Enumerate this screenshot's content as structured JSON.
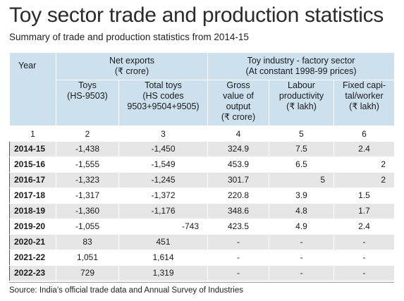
{
  "title": "Toy sector trade and production statistics",
  "subtitle": "Summary of trade and production statistics from 2014-15",
  "table": {
    "year_header": "Year",
    "group_net_exports": [
      "Net exports",
      "(₹ crore)"
    ],
    "group_toy_industry": [
      "Toy industry - factory sector",
      "(At constant 1998-99 prices)"
    ],
    "col_toys": [
      "Toys",
      "(HS-9503)"
    ],
    "col_total_toys": [
      "Total toys",
      "(HS codes",
      "9503+9504+9505)"
    ],
    "col_gross": [
      "Gross",
      "value of",
      "output",
      "(₹ crore)"
    ],
    "col_labour": [
      "Labour",
      "productivity",
      "(₹ lakh)"
    ],
    "col_capital": [
      "Fixed capi-",
      "tal/worker",
      "(₹ lakh)"
    ],
    "column_numbers": [
      "1",
      "2",
      "3",
      "4",
      "5",
      "6"
    ],
    "rows": [
      {
        "year": "2014-15",
        "toys": "-1,438",
        "total": "-1,450",
        "gross": "324.9",
        "labour": "7.5",
        "capital": "2.4"
      },
      {
        "year": "2015-16",
        "toys": "-1,555",
        "total": "-1,549",
        "gross": "453.9",
        "labour": "6.5",
        "capital": "2"
      },
      {
        "year": "2016-17",
        "toys": "-1,323",
        "total": "-1,245",
        "gross": "301.7",
        "labour": "5",
        "capital": "2"
      },
      {
        "year": "2017-18",
        "toys": "-1,317",
        "total": "-1,372",
        "gross": "220.8",
        "labour": "3.9",
        "capital": "1.5"
      },
      {
        "year": "2018-19",
        "toys": "-1,360",
        "total": "-1,176",
        "gross": "348.6",
        "labour": "4.8",
        "capital": "1.7"
      },
      {
        "year": "2019-20",
        "toys": "-1,055",
        "total": "-743",
        "gross": "423.5",
        "labour": "4.9",
        "capital": "2.4"
      },
      {
        "year": "2020-21",
        "toys": "83",
        "total": "451",
        "gross": "-",
        "labour": "-",
        "capital": "-"
      },
      {
        "year": "2021-22",
        "toys": "1,051",
        "total": "1,614",
        "gross": "-",
        "labour": "-",
        "capital": "-"
      },
      {
        "year": "2022-23",
        "toys": "729",
        "total": "1,319",
        "gross": "-",
        "labour": "-",
        "capital": "-"
      }
    ]
  },
  "source": "Source: India’s official trade data and Annual Survey of Industries",
  "colors": {
    "header_blue": "#cce0ee",
    "row_shade": "#e6e6e6"
  }
}
